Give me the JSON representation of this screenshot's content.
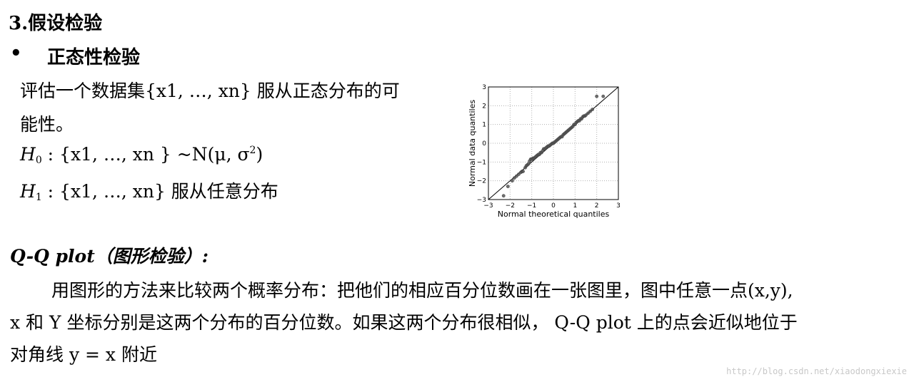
{
  "section": {
    "title": "3.假设检验",
    "bullet": "•",
    "subtitle": "正态性检验"
  },
  "intro": {
    "line1": "评估一个数据集{x1, …, xn}  服从正态分布的可",
    "line2": "能性。"
  },
  "hypotheses": {
    "h0_symbol": "H",
    "h0_sub": "0",
    "h0_text": " : {x1, …, xn } ~N(μ, σ",
    "h0_sup": "2",
    "h0_close": ")",
    "h1_symbol": "H",
    "h1_sub": "1",
    "h1_text": " : {x1, …, xn}  服从任意分布"
  },
  "qq": {
    "heading": "Q-Q plot（图形检验）:",
    "line1": "用图形的方法来比较两个概率分布：把他们的相应百分位数画在一张图里，图中任意一点(x,y),",
    "line2": "x 和 Y 坐标分别是这两个分布的百分位数。如果这两个分布很相似，   Q-Q plot  上的点会近似地位于",
    "line3": "对角线 y = x 附近"
  },
  "watermark": "http://blog.csdn.net/xiaodongxiexie",
  "chart_data": {
    "type": "scatter",
    "xlabel": "Normal theoretical quantiles",
    "ylabel": "Normal data quantiles",
    "xlim": [
      -3,
      3
    ],
    "ylim": [
      -3,
      3
    ],
    "xticks": [
      "−3",
      "−2",
      "−1",
      "0",
      "1",
      "2",
      "3"
    ],
    "yticks": [
      "−3",
      "−2",
      "−1",
      "0",
      "1",
      "2",
      "3"
    ],
    "grid": true,
    "reference_line": "y = x",
    "point_color": "#555555",
    "x": [
      -2.3,
      -2.1,
      -1.9,
      -1.8,
      -1.7,
      -1.6,
      -1.5,
      -1.45,
      -1.4,
      -1.3,
      -1.25,
      -1.2,
      -1.15,
      -1.1,
      -1.05,
      -1.0,
      -0.95,
      -0.9,
      -0.85,
      -0.8,
      -0.75,
      -0.7,
      -0.65,
      -0.6,
      -0.55,
      -0.5,
      -0.45,
      -0.4,
      -0.35,
      -0.3,
      -0.25,
      -0.2,
      -0.15,
      -0.1,
      -0.05,
      0.0,
      0.05,
      0.1,
      0.15,
      0.2,
      0.25,
      0.3,
      0.35,
      0.4,
      0.45,
      0.5,
      0.55,
      0.6,
      0.65,
      0.7,
      0.75,
      0.8,
      0.85,
      0.9,
      0.95,
      1.0,
      1.05,
      1.1,
      1.15,
      1.2,
      1.25,
      1.3,
      1.35,
      1.4,
      1.45,
      1.5,
      1.6,
      1.7,
      1.8,
      2.0,
      2.3
    ],
    "y": [
      -2.8,
      -2.3,
      -2.0,
      -1.85,
      -1.75,
      -1.65,
      -1.55,
      -1.5,
      -1.5,
      -1.3,
      -1.2,
      -1.15,
      -1.1,
      -0.95,
      -0.85,
      -0.85,
      -0.8,
      -0.8,
      -0.75,
      -0.7,
      -0.65,
      -0.6,
      -0.6,
      -0.5,
      -0.5,
      -0.4,
      -0.3,
      -0.3,
      -0.25,
      -0.2,
      -0.15,
      -0.15,
      -0.1,
      -0.05,
      0.0,
      0.0,
      0.05,
      0.1,
      0.15,
      0.2,
      0.25,
      0.3,
      0.35,
      0.35,
      0.45,
      0.5,
      0.55,
      0.6,
      0.65,
      0.7,
      0.75,
      0.8,
      0.85,
      0.9,
      1.0,
      1.0,
      1.1,
      1.15,
      1.2,
      1.2,
      1.3,
      1.3,
      1.4,
      1.45,
      1.45,
      1.5,
      1.6,
      1.7,
      1.8,
      2.5,
      2.5
    ]
  }
}
